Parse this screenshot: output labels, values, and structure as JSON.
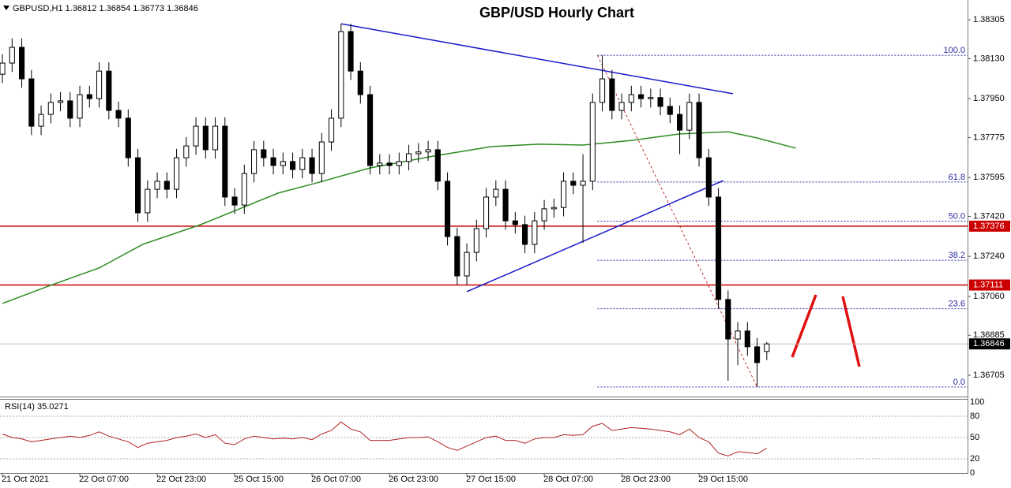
{
  "chart_data": {
    "type": "candlestick",
    "title": "GBP/USD Hourly Chart",
    "symbol": "GBPUSD,H1",
    "x": [
      0,
      2,
      4,
      6,
      8,
      10,
      12,
      14,
      16,
      18,
      20,
      22,
      24,
      26,
      28,
      30,
      32,
      34,
      36,
      38,
      40,
      42,
      44,
      46,
      48,
      50,
      52,
      54,
      56,
      58,
      60,
      62,
      64,
      66,
      68,
      70,
      72,
      74,
      76,
      78,
      80,
      82,
      84,
      86,
      88,
      90,
      92,
      94,
      96,
      98,
      100,
      102,
      104,
      106,
      108,
      110,
      112,
      114,
      116,
      118,
      120,
      122,
      124,
      126,
      128,
      130,
      132,
      134,
      136,
      138,
      140,
      142,
      144,
      146,
      148,
      150,
      152,
      154,
      156,
      158
    ],
    "candles": [
      [
        1.3806,
        1.3815,
        1.3802,
        1.3811
      ],
      [
        1.3811,
        1.38221,
        1.3807,
        1.38181
      ],
      [
        1.38181,
        1.38221,
        1.37999,
        1.38039
      ],
      [
        1.38039,
        1.38079,
        1.37786,
        1.37826
      ],
      [
        1.37826,
        1.37919,
        1.37786,
        1.37879
      ],
      [
        1.37879,
        1.37973,
        1.37839,
        1.37933
      ],
      [
        1.37933,
        1.3798,
        1.37893,
        1.3794
      ],
      [
        1.3794,
        1.3798,
        1.37822,
        1.37862
      ],
      [
        1.37862,
        1.38008,
        1.37822,
        1.37968
      ],
      [
        1.37968,
        1.38008,
        1.3791,
        1.3795
      ],
      [
        1.3795,
        1.38114,
        1.3791,
        1.38074
      ],
      [
        1.38074,
        1.38114,
        1.37857,
        1.37897
      ],
      [
        1.37897,
        1.37937,
        1.37822,
        1.37862
      ],
      [
        1.37862,
        1.37902,
        1.37644,
        1.37684
      ],
      [
        1.37684,
        1.37724,
        1.37396,
        1.37436
      ],
      [
        1.37436,
        1.37582,
        1.37396,
        1.37542
      ],
      [
        1.37542,
        1.37618,
        1.37502,
        1.37578
      ],
      [
        1.37578,
        1.37618,
        1.37502,
        1.37542
      ],
      [
        1.37542,
        1.37724,
        1.37502,
        1.37684
      ],
      [
        1.37684,
        1.37777,
        1.37644,
        1.37737
      ],
      [
        1.37737,
        1.37866,
        1.37697,
        1.37826
      ],
      [
        1.37826,
        1.37866,
        1.3768,
        1.3772
      ],
      [
        1.3772,
        1.37866,
        1.3768,
        1.37826
      ],
      [
        1.37826,
        1.37866,
        1.37467,
        1.37507
      ],
      [
        1.37507,
        1.37547,
        1.37431,
        1.37471
      ],
      [
        1.37471,
        1.37653,
        1.37431,
        1.37613
      ],
      [
        1.37613,
        1.3776,
        1.37573,
        1.3772
      ],
      [
        1.3772,
        1.3776,
        1.37644,
        1.37684
      ],
      [
        1.37684,
        1.37724,
        1.37609,
        1.37649
      ],
      [
        1.37649,
        1.37707,
        1.37609,
        1.37667
      ],
      [
        1.37667,
        1.37707,
        1.37591,
        1.37631
      ],
      [
        1.37631,
        1.37724,
        1.37591,
        1.37684
      ],
      [
        1.37684,
        1.37724,
        1.37573,
        1.37613
      ],
      [
        1.37613,
        1.37795,
        1.37573,
        1.37755
      ],
      [
        1.37755,
        1.37902,
        1.37715,
        1.37862
      ],
      [
        1.37862,
        1.38287,
        1.37822,
        1.38252
      ],
      [
        1.38252,
        1.38287,
        1.38034,
        1.38074
      ],
      [
        1.38074,
        1.38114,
        1.37928,
        1.37968
      ],
      [
        1.37968,
        1.38008,
        1.37609,
        1.37649
      ],
      [
        1.37649,
        1.377,
        1.37609,
        1.3766
      ],
      [
        1.3766,
        1.377,
        1.37609,
        1.37649
      ],
      [
        1.37649,
        1.37707,
        1.37609,
        1.37667
      ],
      [
        1.37667,
        1.37742,
        1.37627,
        1.37702
      ],
      [
        1.37702,
        1.3775,
        1.37662,
        1.3771
      ],
      [
        1.3771,
        1.3776,
        1.3767,
        1.3772
      ],
      [
        1.3772,
        1.3776,
        1.37538,
        1.37578
      ],
      [
        1.37578,
        1.37618,
        1.37289,
        1.37329
      ],
      [
        1.37329,
        1.37369,
        1.37112,
        1.37152
      ],
      [
        1.37152,
        1.37298,
        1.37112,
        1.37258
      ],
      [
        1.37258,
        1.37405,
        1.37218,
        1.37365
      ],
      [
        1.37365,
        1.37547,
        1.37325,
        1.37507
      ],
      [
        1.37507,
        1.37582,
        1.37467,
        1.37542
      ],
      [
        1.37542,
        1.37582,
        1.3736,
        1.374
      ],
      [
        1.374,
        1.3744,
        1.37343,
        1.37383
      ],
      [
        1.37383,
        1.37423,
        1.37254,
        1.37294
      ],
      [
        1.37294,
        1.3744,
        1.37254,
        1.374
      ],
      [
        1.374,
        1.37494,
        1.3736,
        1.37454
      ],
      [
        1.37454,
        1.375,
        1.37414,
        1.3746
      ],
      [
        1.3746,
        1.37618,
        1.3742,
        1.37578
      ],
      [
        1.37578,
        1.37618,
        1.3752,
        1.3756
      ],
      [
        1.3756,
        1.377,
        1.373,
        1.37578
      ],
      [
        1.37578,
        1.37973,
        1.37538,
        1.37933
      ],
      [
        1.37933,
        1.38145,
        1.37893,
        1.38039
      ],
      [
        1.38039,
        1.38079,
        1.37857,
        1.37897
      ],
      [
        1.37897,
        1.37973,
        1.37857,
        1.37933
      ],
      [
        1.37933,
        1.38008,
        1.37893,
        1.37968
      ],
      [
        1.37968,
        1.38008,
        1.3791,
        1.3795
      ],
      [
        1.3795,
        1.37995,
        1.3791,
        1.37955
      ],
      [
        1.37955,
        1.37995,
        1.37875,
        1.37915
      ],
      [
        1.37915,
        1.37955,
        1.37839,
        1.37879
      ],
      [
        1.37879,
        1.37919,
        1.377,
        1.37808
      ],
      [
        1.37808,
        1.37973,
        1.37768,
        1.37933
      ],
      [
        1.37933,
        1.37973,
        1.37644,
        1.37684
      ],
      [
        1.37684,
        1.37724,
        1.37467,
        1.37507
      ],
      [
        1.37507,
        1.37547,
        1.37006,
        1.37046
      ],
      [
        1.37046,
        1.37086,
        1.3668,
        1.36868
      ],
      [
        1.36868,
        1.36944,
        1.3675,
        1.36904
      ],
      [
        1.36904,
        1.36944,
        1.36793,
        1.36833
      ],
      [
        1.36833,
        1.36873,
        1.36652,
        1.36762
      ],
      [
        1.36812,
        1.36854,
        1.36773,
        1.36846
      ]
    ],
    "candle_colors": {
      "up": "#ffffff",
      "down": "#000000",
      "outline": "#000000"
    },
    "xlim": [
      -0.5,
      199.5
    ],
    "xticks": [
      {
        "value": 0,
        "label": "21 Oct 2021"
      },
      {
        "value": 16,
        "label": "22 Oct 07:00"
      },
      {
        "value": 32,
        "label": "22 Oct 23:00"
      },
      {
        "value": 48,
        "label": "25 Oct 15:00"
      },
      {
        "value": 64,
        "label": "26 Oct 07:00"
      },
      {
        "value": 80,
        "label": "26 Oct 23:00"
      },
      {
        "value": 96,
        "label": "27 Oct 15:00"
      },
      {
        "value": 112,
        "label": "28 Oct 07:00"
      },
      {
        "value": 128,
        "label": "28 Oct 23:00"
      },
      {
        "value": 144,
        "label": "29 Oct 15:00"
      }
    ],
    "ylim": [
      1.36609,
      1.38394
    ],
    "yticks": [
      1.38305,
      {
        "value": 1.3813,
        "label": "1.38130"
      },
      {
        "value": 1.3795,
        "label": "1.37950"
      },
      1.37775,
      1.37595,
      {
        "value": 1.3742,
        "label": "1.37420"
      },
      {
        "value": 1.3724,
        "label": "1.37240"
      },
      {
        "value": 1.3706,
        "label": "1.37060"
      },
      1.36885,
      1.36705
    ],
    "moving_average": {
      "color": "#2e8b22",
      "x": [
        0,
        10,
        20,
        29,
        41,
        49,
        57,
        65,
        76,
        89,
        101,
        111,
        120,
        130,
        140,
        150,
        156,
        164
      ],
      "values": [
        1.37028,
        1.3711,
        1.37188,
        1.37294,
        1.37383,
        1.37454,
        1.37525,
        1.37571,
        1.37638,
        1.37691,
        1.37734,
        1.37745,
        1.37741,
        1.37762,
        1.37791,
        1.37801,
        1.37773,
        1.37727
      ]
    },
    "trendlines": [
      {
        "color": "#1a1acc",
        "x": [
          70,
          151
        ],
        "y": [
          1.38287,
          1.37972
        ]
      },
      {
        "color": "#1a1acc",
        "x": [
          96,
          149
        ],
        "y": [
          1.37081,
          1.37581
        ]
      }
    ],
    "levels": {
      "color": "#cc0000",
      "values": [
        1.37376,
        1.37111
      ]
    },
    "fibonacci": {
      "color": "#2b2ba0",
      "x": [
        123,
        156
      ],
      "high": 1.38145,
      "low": 1.36652,
      "levels": [
        {
          "value": 100,
          "label": "100.0"
        },
        61.8,
        {
          "value": 50,
          "label": "50.0"
        },
        38.2,
        23.6,
        {
          "value": 0,
          "label": "0.0"
        }
      ]
    },
    "rsi": {
      "name": "RSI(14)",
      "color": "#b22222",
      "ylim": [
        0,
        100
      ],
      "yticks": [
        100,
        80,
        50,
        20,
        0
      ],
      "values": [
        55,
        50,
        48,
        44,
        46,
        48,
        50,
        52,
        50,
        53,
        58,
        52,
        48,
        44,
        36,
        42,
        44,
        46,
        50,
        52,
        55,
        50,
        54,
        42,
        40,
        48,
        52,
        50,
        48,
        49,
        48,
        50,
        47,
        55,
        60,
        72,
        62,
        58,
        46,
        46,
        46,
        48,
        50,
        50,
        51,
        44,
        36,
        32,
        38,
        44,
        50,
        52,
        46,
        46,
        42,
        48,
        50,
        50,
        54,
        53,
        54,
        66,
        70,
        60,
        62,
        64,
        63,
        62,
        60,
        58,
        54,
        62,
        50,
        44,
        28,
        24,
        30,
        29,
        27,
        35.0271
      ]
    }
  }
}
